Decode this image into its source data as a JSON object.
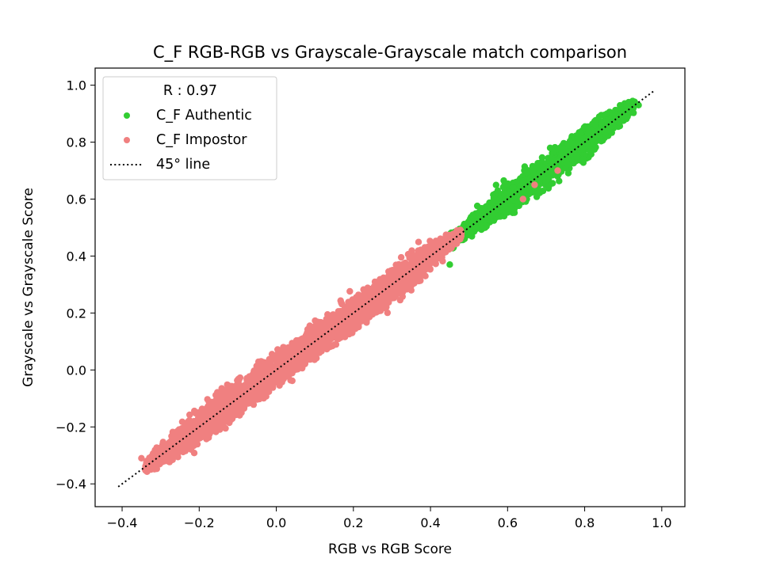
{
  "chart_data": {
    "type": "scatter",
    "title": "C_F RGB-RGB vs Grayscale-Grayscale match comparison",
    "xlabel": "RGB vs RGB Score",
    "ylabel": "Grayscale vs Grayscale Score",
    "xlim": [
      -0.47,
      1.06
    ],
    "ylim": [
      -0.48,
      1.06
    ],
    "xticks": [
      -0.4,
      -0.2,
      0.0,
      0.2,
      0.4,
      0.6,
      0.8,
      1.0
    ],
    "yticks": [
      -0.4,
      -0.2,
      0.0,
      0.2,
      0.4,
      0.6,
      0.8,
      1.0
    ],
    "xtick_labels": [
      "−0.4",
      "−0.2",
      "0.0",
      "0.2",
      "0.4",
      "0.6",
      "0.8",
      "1.0"
    ],
    "ytick_labels": [
      "−0.4",
      "−0.2",
      "0.0",
      "0.2",
      "0.4",
      "0.6",
      "0.8",
      "1.0"
    ],
    "grid": false,
    "legend": {
      "placement": "top-left",
      "title": "R : 0.97",
      "entries": [
        {
          "label": "C_F Authentic",
          "marker": "dot",
          "color": "#32cd32"
        },
        {
          "label": "C_F Impostor",
          "marker": "dot",
          "color": "#f08080"
        },
        {
          "label": "45° line",
          "marker": "dotted-line",
          "color": "#000000"
        }
      ]
    },
    "series": [
      {
        "name": "C_F Authentic",
        "color": "#32cd32",
        "band": {
          "x_range": [
            0.44,
            0.93
          ],
          "min_x": 0.44,
          "max_x": 0.93,
          "width": 0.045
        },
        "outliers": [
          [
            0.45,
            0.37
          ],
          [
            0.46,
            0.43
          ],
          [
            0.65,
            0.6
          ],
          [
            0.67,
            0.64
          ],
          [
            0.93,
            0.94
          ],
          [
            0.94,
            0.93
          ]
        ]
      },
      {
        "name": "C_F Impostor",
        "color": "#f08080",
        "band": {
          "x_range": [
            -0.34,
            0.48
          ],
          "min_x": -0.34,
          "max_x": 0.48,
          "width": 0.05
        },
        "outliers": [
          [
            -0.35,
            -0.31
          ],
          [
            -0.34,
            -0.35
          ],
          [
            0.67,
            0.65
          ],
          [
            0.64,
            0.6
          ],
          [
            0.73,
            0.7
          ]
        ]
      },
      {
        "name": "45° line",
        "color": "#000000",
        "line": {
          "x": [
            -0.41,
            0.98
          ],
          "y": [
            -0.41,
            0.98
          ]
        }
      }
    ]
  }
}
